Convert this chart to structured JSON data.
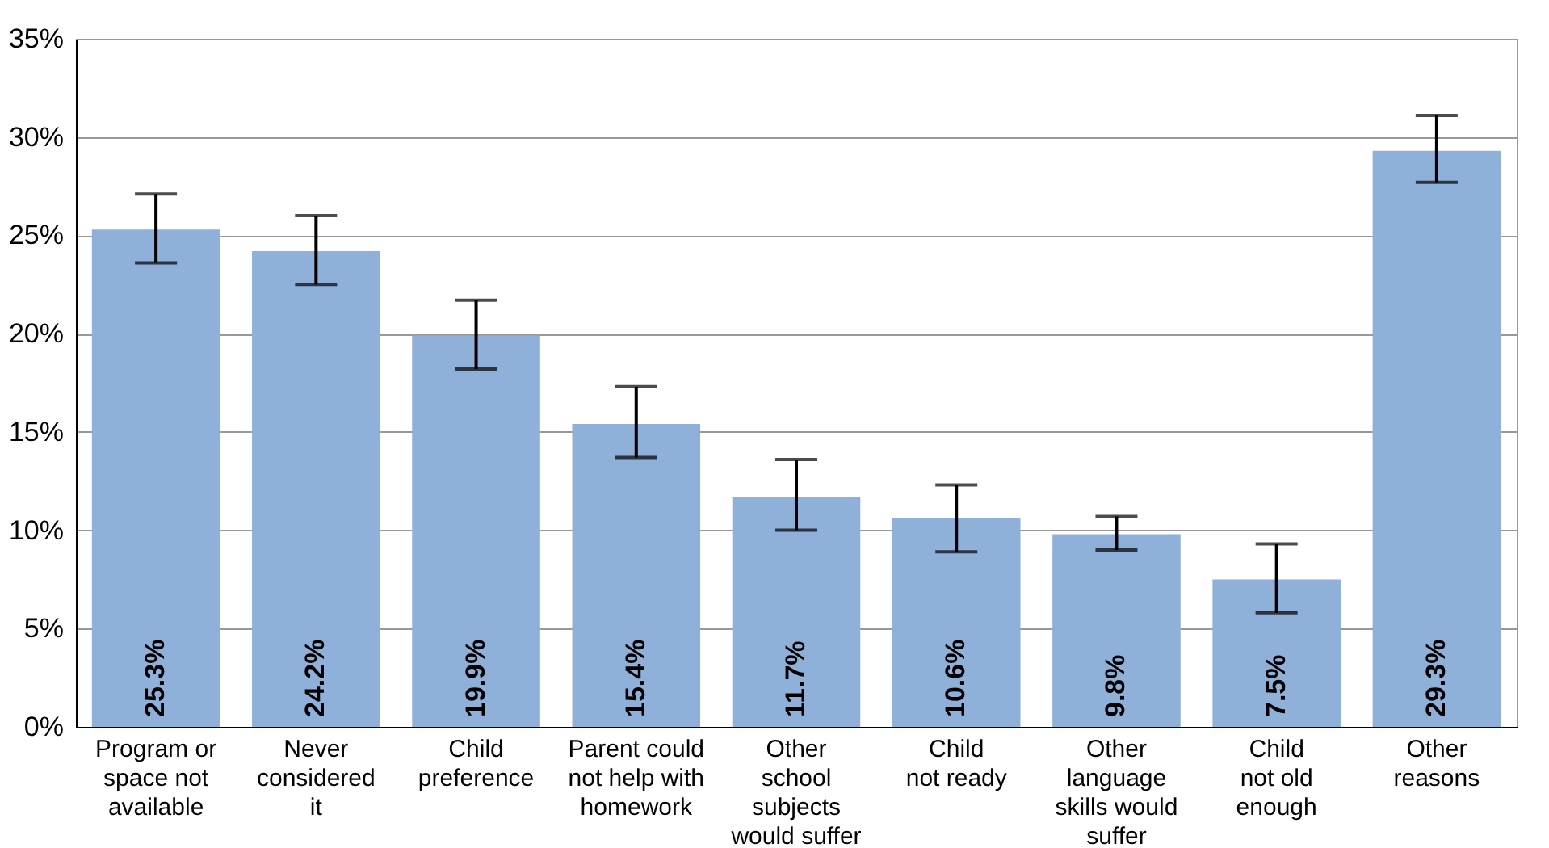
{
  "chart_data": {
    "type": "bar",
    "categories": [
      "Program or\nspace not\navailable",
      "Never\nconsidered\nit",
      "Child\npreference",
      "Parent could\nnot help with\nhomework",
      "Other\nschool\nsubjects\nwould suffer",
      "Child\nnot ready",
      "Other\nlanguage\nskills would\nsuffer",
      "Child\nnot old\nenough",
      "Other\nreasons"
    ],
    "values": [
      25.3,
      24.2,
      19.9,
      15.4,
      11.7,
      10.6,
      9.8,
      7.5,
      29.3
    ],
    "color": "#8fb0d8",
    "errors": [
      [
        23.6,
        27.1
      ],
      [
        22.5,
        26.0
      ],
      [
        18.2,
        21.7
      ],
      [
        13.7,
        17.3
      ],
      [
        10.0,
        13.6
      ],
      [
        8.9,
        12.3
      ],
      [
        9.0,
        10.7
      ],
      [
        5.8,
        9.3
      ],
      [
        27.7,
        31.1
      ]
    ],
    "value_labels": [
      "25.3%",
      "24.2%",
      "19.9%",
      "15.4%",
      "11.7%",
      "10.6%",
      "9.8%",
      "7.5%",
      "29.3%"
    ],
    "ylim": [
      0,
      35
    ],
    "yticks": [
      {
        "value": 0,
        "label": "0%"
      },
      {
        "value": 5,
        "label": "5%"
      },
      {
        "value": 10,
        "label": "10%"
      },
      {
        "value": 15,
        "label": "15%"
      },
      {
        "value": 20,
        "label": "20%"
      },
      {
        "value": 25,
        "label": "25%"
      },
      {
        "value": 30,
        "label": "30%"
      },
      {
        "value": 35,
        "label": "35%"
      }
    ],
    "grid": "y"
  }
}
